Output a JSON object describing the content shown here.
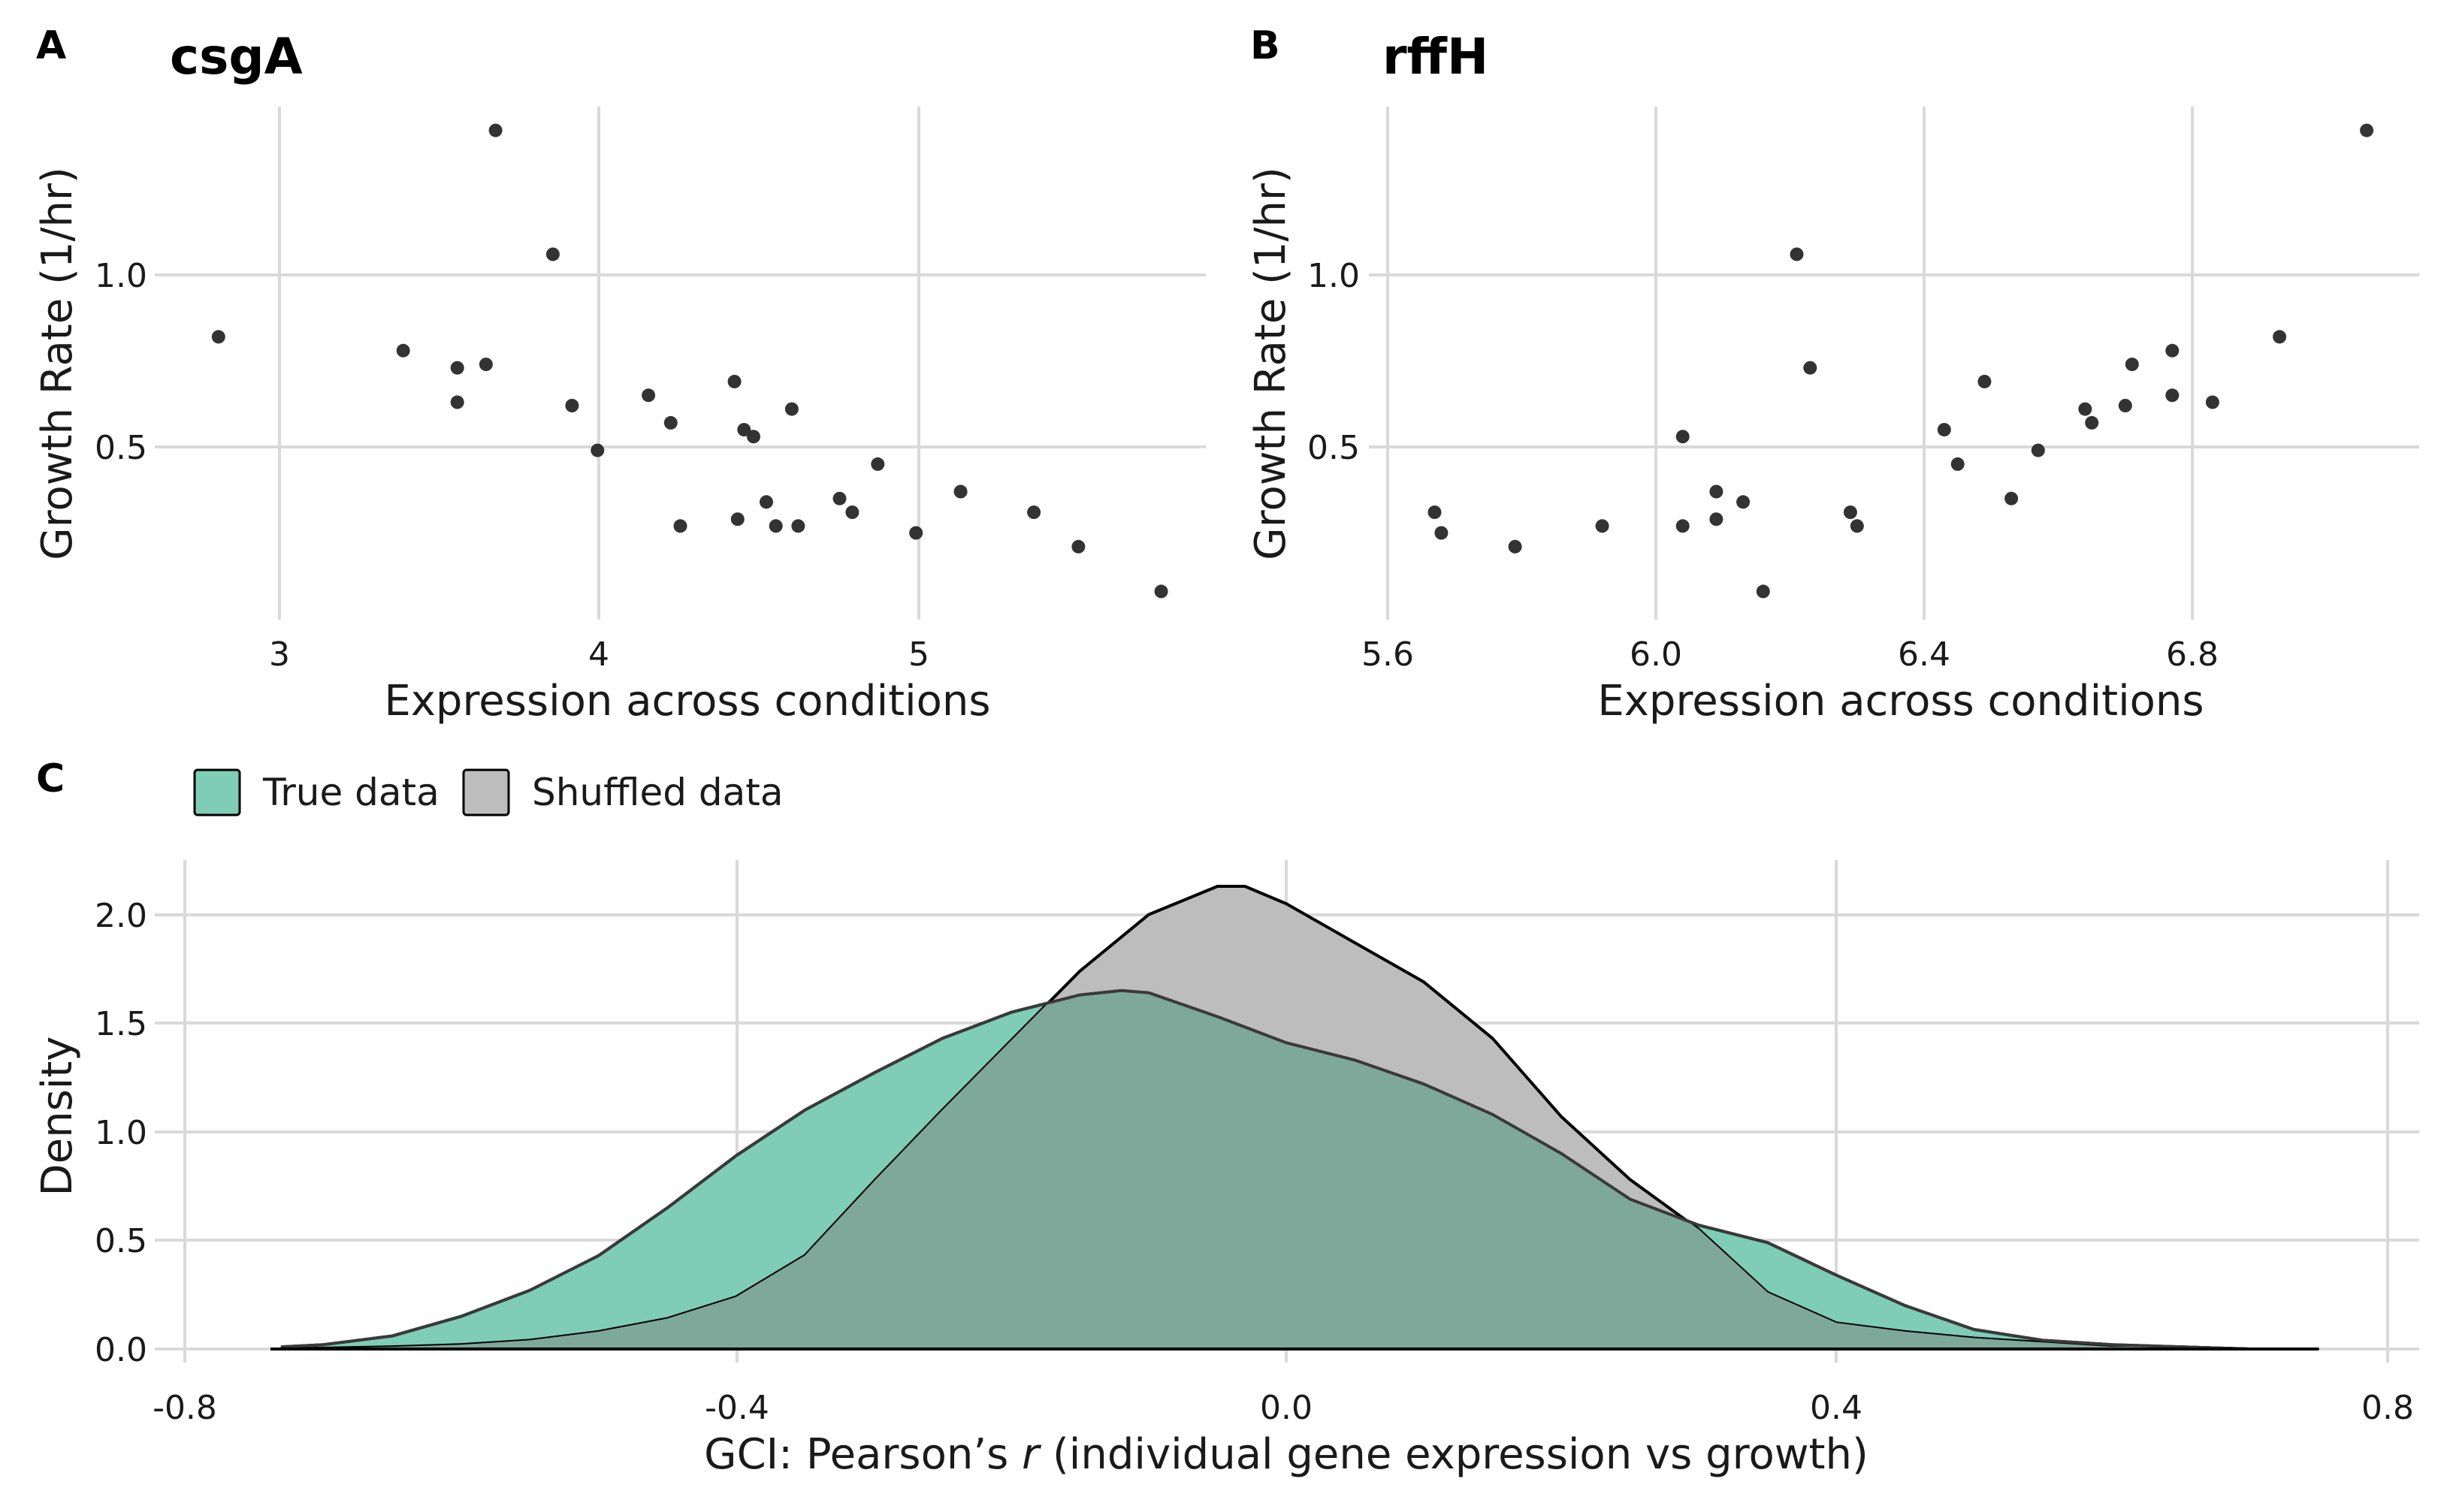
{
  "panels": {
    "A": {
      "label": "A",
      "title": "csgA",
      "xlabel": "Expression across conditions",
      "ylabel": "Growth Rate (1/hr)",
      "xticks": [
        "3",
        "4",
        "5"
      ],
      "yticks": [
        "0.5",
        "1.0"
      ]
    },
    "B": {
      "label": "B",
      "title": "rffH",
      "xlabel": "Expression across conditions",
      "ylabel": "Growth Rate (1/hr)",
      "xticks": [
        "5.6",
        "6.0",
        "6.4",
        "6.8"
      ],
      "yticks": [
        "0.5",
        "1.0"
      ]
    },
    "C": {
      "label": "C",
      "xlabel_pre": "GCI: Pearson’s ",
      "xlabel_r": "r",
      "xlabel_post": " (individual gene expression vs growth)",
      "ylabel": "Density",
      "xticks": [
        "-0.8",
        "-0.4",
        "0.0",
        "0.4",
        "0.8"
      ],
      "yticks": [
        "0.0",
        "0.5",
        "1.0",
        "1.5",
        "2.0"
      ],
      "legend": [
        "True data",
        "Shuffled data"
      ]
    }
  },
  "colors": {
    "point": "#333333",
    "true_fill": "#7fcdb6",
    "shuffled_fill": "#bdbdbd",
    "overlap_fill": "#7ea89a",
    "outline": "#000000"
  },
  "chart_data": [
    {
      "type": "scatter",
      "title": "csgA",
      "xlabel": "Expression across conditions",
      "ylabel": "Growth Rate (1/hr)",
      "xlim": [
        2.6,
        5.9
      ],
      "ylim": [
        0.03,
        1.52
      ],
      "points": [
        [
          2.8,
          0.82
        ],
        [
          3.38,
          0.78
        ],
        [
          3.55,
          0.73
        ],
        [
          3.55,
          0.63
        ],
        [
          3.64,
          0.74
        ],
        [
          3.67,
          1.42
        ],
        [
          3.85,
          1.06
        ],
        [
          3.91,
          0.62
        ],
        [
          3.99,
          0.49
        ],
        [
          4.15,
          0.65
        ],
        [
          4.22,
          0.57
        ],
        [
          4.25,
          0.27
        ],
        [
          4.42,
          0.69
        ],
        [
          4.43,
          0.29
        ],
        [
          4.45,
          0.55
        ],
        [
          4.48,
          0.53
        ],
        [
          4.52,
          0.34
        ],
        [
          4.55,
          0.27
        ],
        [
          4.6,
          0.61
        ],
        [
          4.62,
          0.27
        ],
        [
          4.75,
          0.35
        ],
        [
          4.79,
          0.31
        ],
        [
          4.87,
          0.45
        ],
        [
          4.99,
          0.25
        ],
        [
          5.13,
          0.37
        ],
        [
          5.36,
          0.31
        ],
        [
          5.5,
          0.21
        ],
        [
          5.76,
          0.08
        ]
      ]
    },
    {
      "type": "scatter",
      "title": "rffH",
      "xlabel": "Expression across conditions",
      "ylabel": "Growth Rate (1/hr)",
      "xlim": [
        5.6,
        7.08
      ],
      "ylim": [
        0.03,
        1.52
      ],
      "points": [
        [
          5.67,
          0.31
        ],
        [
          5.68,
          0.25
        ],
        [
          5.79,
          0.21
        ],
        [
          5.92,
          0.27
        ],
        [
          6.04,
          0.27
        ],
        [
          6.04,
          0.53
        ],
        [
          6.09,
          0.29
        ],
        [
          6.09,
          0.37
        ],
        [
          6.13,
          0.34
        ],
        [
          6.16,
          0.08
        ],
        [
          6.21,
          1.06
        ],
        [
          6.23,
          0.73
        ],
        [
          6.29,
          0.31
        ],
        [
          6.3,
          0.27
        ],
        [
          6.43,
          0.55
        ],
        [
          6.45,
          0.45
        ],
        [
          6.49,
          0.69
        ],
        [
          6.53,
          0.35
        ],
        [
          6.57,
          0.49
        ],
        [
          6.64,
          0.61
        ],
        [
          6.65,
          0.57
        ],
        [
          6.7,
          0.62
        ],
        [
          6.71,
          0.74
        ],
        [
          6.77,
          0.78
        ],
        [
          6.77,
          0.65
        ],
        [
          6.83,
          0.63
        ],
        [
          6.93,
          0.82
        ],
        [
          7.06,
          1.42
        ]
      ]
    },
    {
      "type": "area",
      "xlabel": "GCI: Pearson’s r (individual gene expression vs growth)",
      "ylabel": "Density",
      "xlim": [
        -0.805,
        0.81
      ],
      "ylim": [
        0,
        2.25
      ],
      "legend_position": "top-left",
      "series": [
        {
          "name": "True data",
          "x": [
            -0.73,
            -0.7,
            -0.65,
            -0.6,
            -0.55,
            -0.5,
            -0.45,
            -0.4,
            -0.35,
            -0.3,
            -0.25,
            -0.2,
            -0.15,
            -0.12,
            -0.1,
            -0.05,
            0.0,
            0.05,
            0.1,
            0.15,
            0.2,
            0.25,
            0.3,
            0.35,
            0.4,
            0.45,
            0.5,
            0.55,
            0.6,
            0.65,
            0.7,
            0.75
          ],
          "y": [
            0.01,
            0.02,
            0.06,
            0.15,
            0.27,
            0.43,
            0.65,
            0.89,
            1.1,
            1.27,
            1.43,
            1.55,
            1.63,
            1.65,
            1.64,
            1.53,
            1.41,
            1.33,
            1.22,
            1.08,
            0.9,
            0.69,
            0.57,
            0.49,
            0.34,
            0.2,
            0.09,
            0.04,
            0.02,
            0.01,
            0.0,
            0.0
          ]
        },
        {
          "name": "Shuffled data",
          "x": [
            -0.73,
            -0.65,
            -0.6,
            -0.55,
            -0.5,
            -0.45,
            -0.4,
            -0.35,
            -0.3,
            -0.25,
            -0.2,
            -0.15,
            -0.1,
            -0.05,
            -0.03,
            0.0,
            0.05,
            0.1,
            0.15,
            0.2,
            0.25,
            0.3,
            0.35,
            0.4,
            0.45,
            0.5,
            0.55,
            0.6,
            0.65,
            0.7,
            0.75
          ],
          "y": [
            0.0,
            0.01,
            0.02,
            0.04,
            0.08,
            0.14,
            0.24,
            0.43,
            0.77,
            1.1,
            1.42,
            1.74,
            2.0,
            2.13,
            2.13,
            2.05,
            1.87,
            1.69,
            1.43,
            1.07,
            0.78,
            0.55,
            0.26,
            0.12,
            0.08,
            0.05,
            0.03,
            0.01,
            0.01,
            0.0,
            0.0
          ]
        }
      ]
    }
  ]
}
